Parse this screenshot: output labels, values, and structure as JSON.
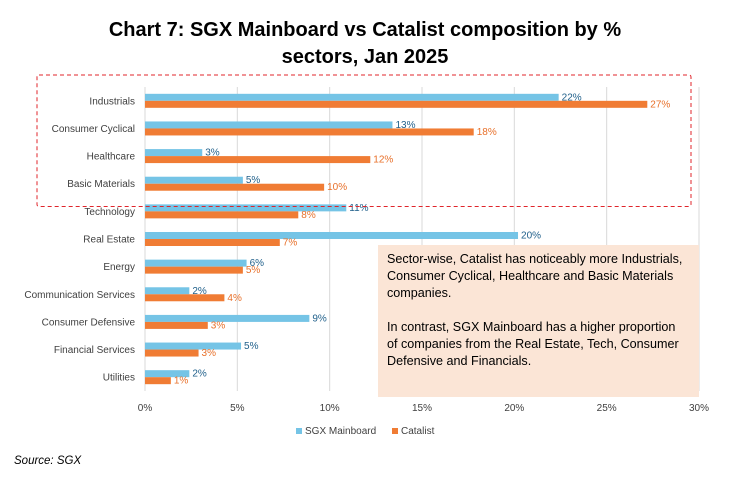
{
  "chart_data": {
    "type": "bar",
    "orientation": "horizontal",
    "title_line1": "Chart 7: SGX Mainboard vs Catalist composition by %",
    "title_line2": "sectors, Jan 2025",
    "categories": [
      "Industrials",
      "Consumer Cyclical",
      "Healthcare",
      "Basic Materials",
      "Technology",
      "Real Estate",
      "Energy",
      "Communication Services",
      "Consumer Defensive",
      "Financial Services",
      "Utilities"
    ],
    "series": [
      {
        "name": "SGX Mainboard",
        "color": "#75c4e6",
        "label_color": "#1f5f8a",
        "values": [
          22.4,
          13.4,
          3.1,
          5.3,
          10.9,
          20.2,
          5.5,
          2.4,
          8.9,
          5.2,
          2.4
        ],
        "labels": [
          "22%",
          "13%",
          "3%",
          "5%",
          "11%",
          "20%",
          "6%",
          "2%",
          "9%",
          "5%",
          "2%"
        ]
      },
      {
        "name": "Catalist",
        "color": "#f07c34",
        "label_color": "#e8702a",
        "values": [
          27.2,
          17.8,
          12.2,
          9.7,
          8.3,
          7.3,
          5.3,
          4.3,
          3.4,
          2.9,
          1.4
        ],
        "labels": [
          "27%",
          "18%",
          "12%",
          "10%",
          "8%",
          "7%",
          "5%",
          "4%",
          "3%",
          "3%",
          "1%"
        ]
      }
    ],
    "xlim": [
      0,
      30
    ],
    "xticks": [
      0,
      5,
      10,
      15,
      20,
      25,
      30
    ],
    "xtick_labels": [
      "0%",
      "5%",
      "10%",
      "15%",
      "20%",
      "25%",
      "30%"
    ],
    "grid": "vertical",
    "legend": "bottom",
    "highlight_box_categories": [
      "Industrials",
      "Consumer Cyclical",
      "Healthcare",
      "Basic Materials"
    ],
    "highlight_box_color": "#e0252b"
  },
  "note": {
    "para1": "Sector-wise, Catalist has noticeably more Industrials, Consumer Cyclical, Healthcare and Basic Materials companies.",
    "para2": "In contrast, SGX Mainboard has a higher proportion of companies from the Real Estate, Tech, Consumer Defensive and Financials."
  },
  "source": "Source: SGX"
}
